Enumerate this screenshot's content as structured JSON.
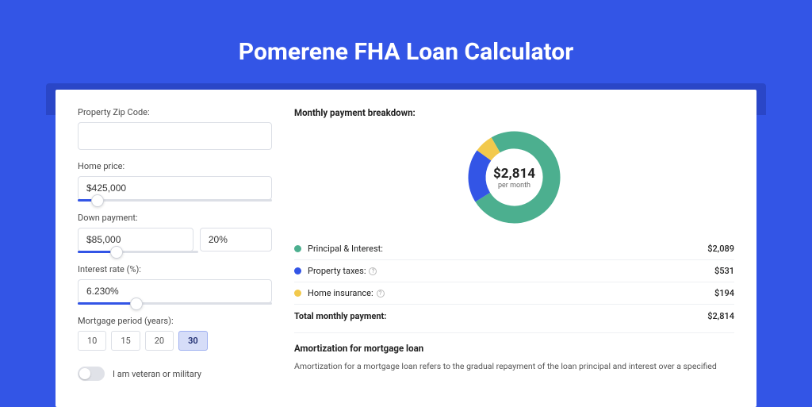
{
  "title": "Pomerene FHA Loan Calculator",
  "colors": {
    "page_bg": "#3355e6",
    "principal": "#4caf8f",
    "taxes": "#3355e6",
    "insurance": "#f2c94c"
  },
  "form": {
    "zip_label": "Property Zip Code:",
    "zip_value": "",
    "home_price_label": "Home price:",
    "home_price_value": "$425,000",
    "home_price_slider_pct": 10,
    "down_label": "Down payment:",
    "down_value": "$85,000",
    "down_pct_value": "20%",
    "down_slider_pct": 20,
    "rate_label": "Interest rate (%):",
    "rate_value": "6.230%",
    "rate_slider_pct": 30,
    "period_label": "Mortgage period (years):",
    "period_options": [
      "10",
      "15",
      "20",
      "30"
    ],
    "period_selected": "30",
    "veteran_label": "I am veteran or military"
  },
  "breakdown": {
    "heading": "Monthly payment breakdown:",
    "center_amount": "$2,814",
    "center_sub": "per month",
    "items": [
      {
        "label": "Principal & Interest:",
        "value": "$2,089",
        "color": "#4caf8f",
        "pct": 74.2,
        "info": false
      },
      {
        "label": "Property taxes:",
        "value": "$531",
        "color": "#3355e6",
        "pct": 18.9,
        "info": true
      },
      {
        "label": "Home insurance:",
        "value": "$194",
        "color": "#f2c94c",
        "pct": 6.9,
        "info": true
      }
    ],
    "total_label": "Total monthly payment:",
    "total_value": "$2,814",
    "donut": {
      "radius": 47,
      "stroke_width": 22,
      "circumference": 295.3
    }
  },
  "amortization": {
    "heading": "Amortization for mortgage loan",
    "text": "Amortization for a mortgage loan refers to the gradual repayment of the loan principal and interest over a specified"
  }
}
